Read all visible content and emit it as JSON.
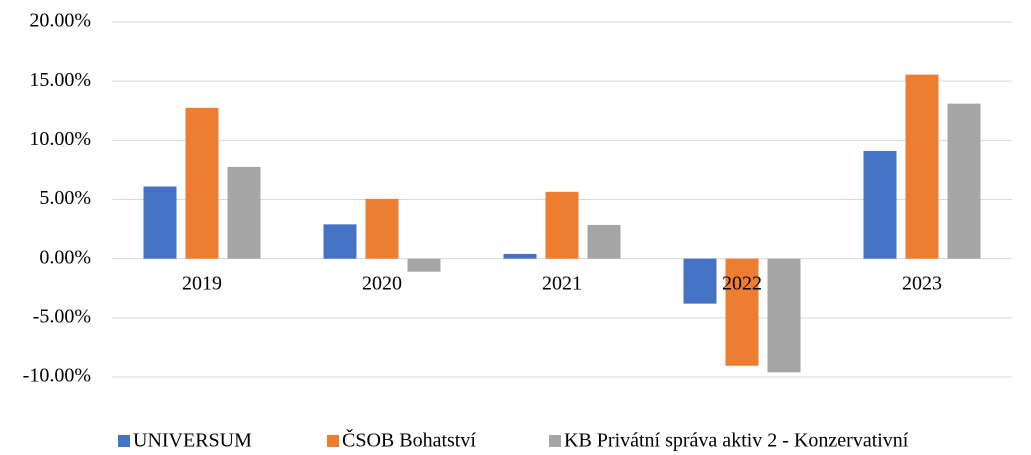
{
  "chart_data": {
    "type": "bar",
    "categories": [
      "2019",
      "2020",
      "2021",
      "2022",
      "2023"
    ],
    "series": [
      {
        "name": "UNIVERSUM",
        "color": "#4472c4",
        "values": [
          6.1,
          2.9,
          0.4,
          -3.8,
          9.1
        ]
      },
      {
        "name": "ČSOB Bohatství",
        "color": "#ed7d31",
        "values": [
          12.75,
          5.05,
          5.65,
          -9.05,
          15.55
        ]
      },
      {
        "name": "KB Privátní správa aktiv 2 - Konzervativní",
        "color": "#a5a5a5",
        "values": [
          7.75,
          -1.1,
          2.85,
          -9.6,
          13.1
        ]
      }
    ],
    "ylim": [
      -10,
      20
    ],
    "yticks": [
      {
        "value": -10,
        "label": "-10.00%"
      },
      {
        "value": -5,
        "label": "-5.00%"
      },
      {
        "value": 0,
        "label": "0.00%"
      },
      {
        "value": 5,
        "label": "5.00%"
      },
      {
        "value": 10,
        "label": "10.00%"
      },
      {
        "value": 15,
        "label": "15.00%"
      },
      {
        "value": 20,
        "label": "20.00%"
      }
    ],
    "grid": true,
    "legend": "bottom"
  }
}
